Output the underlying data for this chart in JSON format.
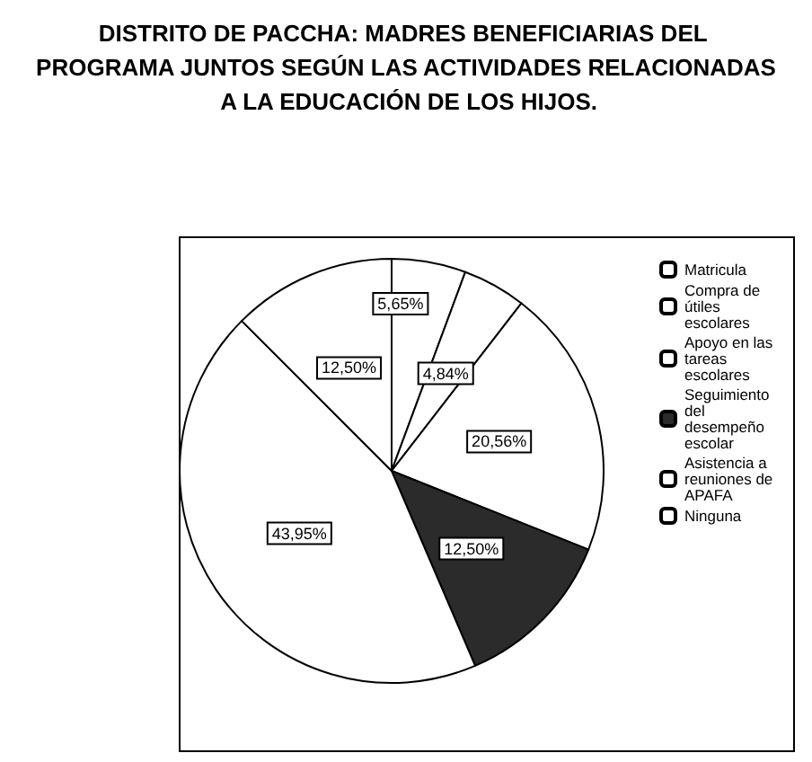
{
  "chart_data": {
    "type": "pie",
    "title": "DISTRITO DE PACCHA: MADRES BENEFICIARIAS DEL PROGRAMA JUNTOS SEGÚN LAS ACTIVIDADES RELACIONADAS A LA EDUCACIÓN DE LOS HIJOS.",
    "categories": [
      "Matricula",
      "Compra de útiles escolares",
      "Apoyo en las tareas escolares",
      "Seguimiento del desempeño escolar",
      "Asistencia a reuniones de APAFA",
      "Ninguna"
    ],
    "values": [
      5.65,
      4.84,
      20.56,
      12.5,
      43.95,
      12.5
    ],
    "value_labels": [
      "5,65%",
      "4,84%",
      "20,56%",
      "12,50%",
      "43,95%",
      "12,50%"
    ],
    "colors": [
      "#ffffff",
      "#ffffff",
      "#ffffff",
      "#2b2b2b",
      "#ffffff",
      "#ffffff"
    ],
    "legend": "top right"
  }
}
